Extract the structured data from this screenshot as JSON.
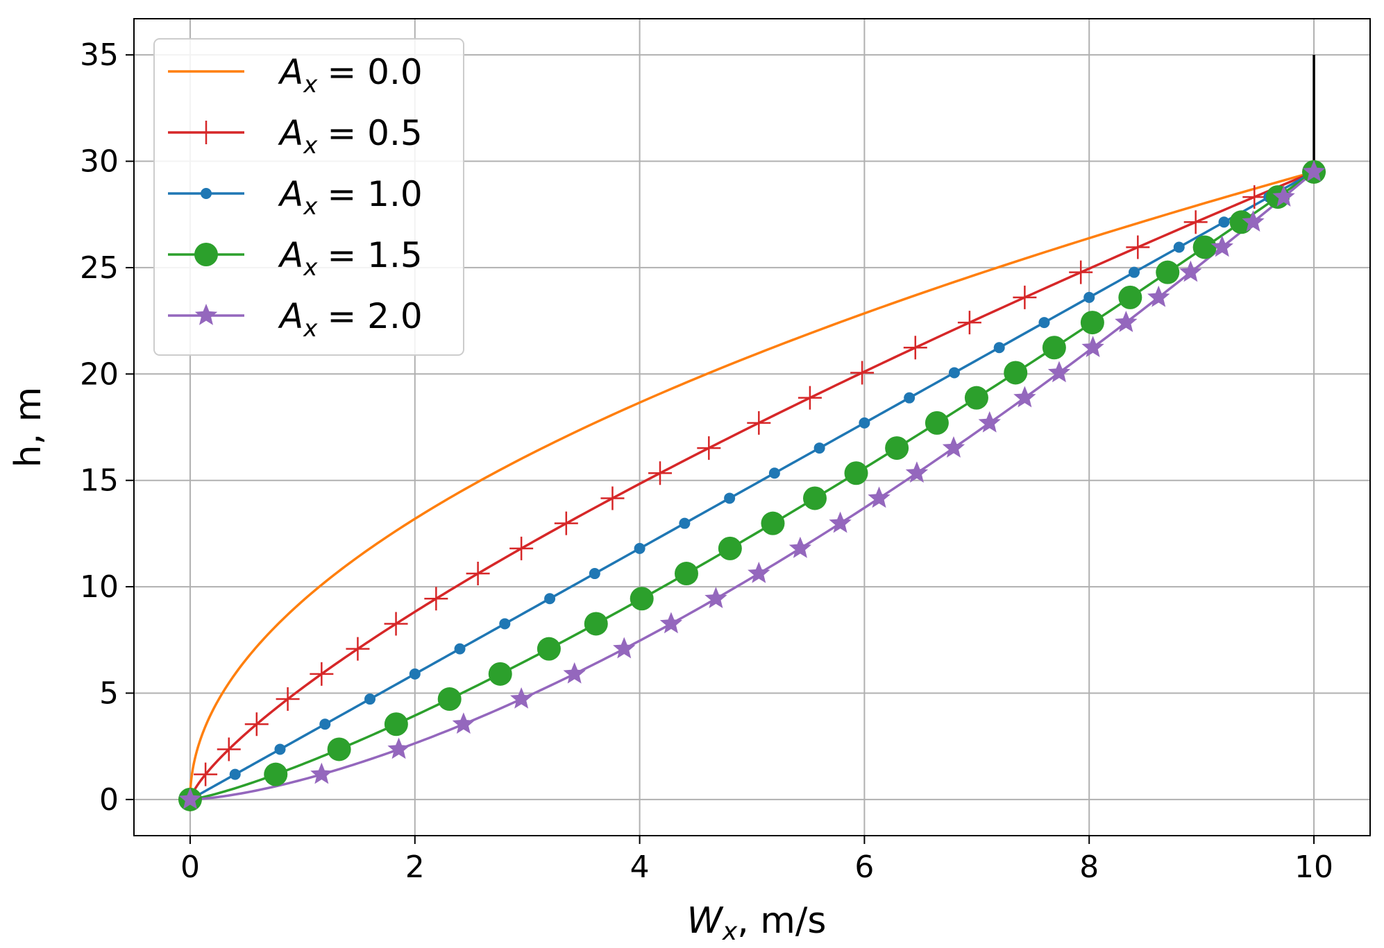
{
  "chart_data": {
    "type": "line",
    "xlabel": "W_x, m/s",
    "xlabel_main": "W",
    "xlabel_sub": "x",
    "xlabel_rest": ", m/s",
    "ylabel": "h, m",
    "xlim": [
      -0.5,
      10.5
    ],
    "ylim": [
      -1.7,
      36.7
    ],
    "xticks": [
      0,
      2,
      4,
      6,
      8,
      10
    ],
    "xtick_labels": [
      "0",
      "2",
      "4",
      "6",
      "8",
      "10"
    ],
    "yticks": [
      0,
      5,
      10,
      15,
      20,
      25,
      30,
      35
    ],
    "ytick_labels": [
      "0",
      "5",
      "10",
      "15",
      "20",
      "25",
      "30",
      "35"
    ],
    "grid": true,
    "legend_position": "upper-left",
    "profile": {
      "h_max": 29.5,
      "W_max": 10,
      "h_points": [
        0,
        1.18,
        2.36,
        3.54,
        4.72,
        5.9,
        7.08,
        8.26,
        9.44,
        10.62,
        11.8,
        12.98,
        14.16,
        15.34,
        16.52,
        17.7,
        18.88,
        20.06,
        21.24,
        22.42,
        23.6,
        24.78,
        25.96,
        27.14,
        28.32,
        29.5
      ]
    },
    "series": [
      {
        "name": "A_x = 0.0",
        "legend_prefix": "A",
        "legend_sub": "x",
        "legend_value": "= 0.0",
        "exponent": 0.5,
        "color": "#ff7f0e",
        "marker": "none"
      },
      {
        "name": "A_x = 0.5",
        "legend_prefix": "A",
        "legend_sub": "x",
        "legend_value": "= 0.5",
        "exponent": 0.75,
        "color": "#d62728",
        "marker": "plus"
      },
      {
        "name": "A_x = 1.0",
        "legend_prefix": "A",
        "legend_sub": "x",
        "legend_value": "= 1.0",
        "exponent": 1.0,
        "color": "#1f77b4",
        "marker": "small-circle"
      },
      {
        "name": "A_x = 1.5",
        "legend_prefix": "A",
        "legend_sub": "x",
        "legend_value": "= 1.5",
        "exponent": 1.25,
        "color": "#2ca02c",
        "marker": "large-circle"
      },
      {
        "name": "A_x = 2.0",
        "legend_prefix": "A",
        "legend_sub": "x",
        "legend_value": "= 2.0",
        "exponent": 1.5,
        "color": "#9467bd",
        "marker": "star"
      }
    ],
    "vertical_line": {
      "x": 10,
      "y_from": 29.5,
      "y_to": 35,
      "color": "#000000"
    }
  }
}
